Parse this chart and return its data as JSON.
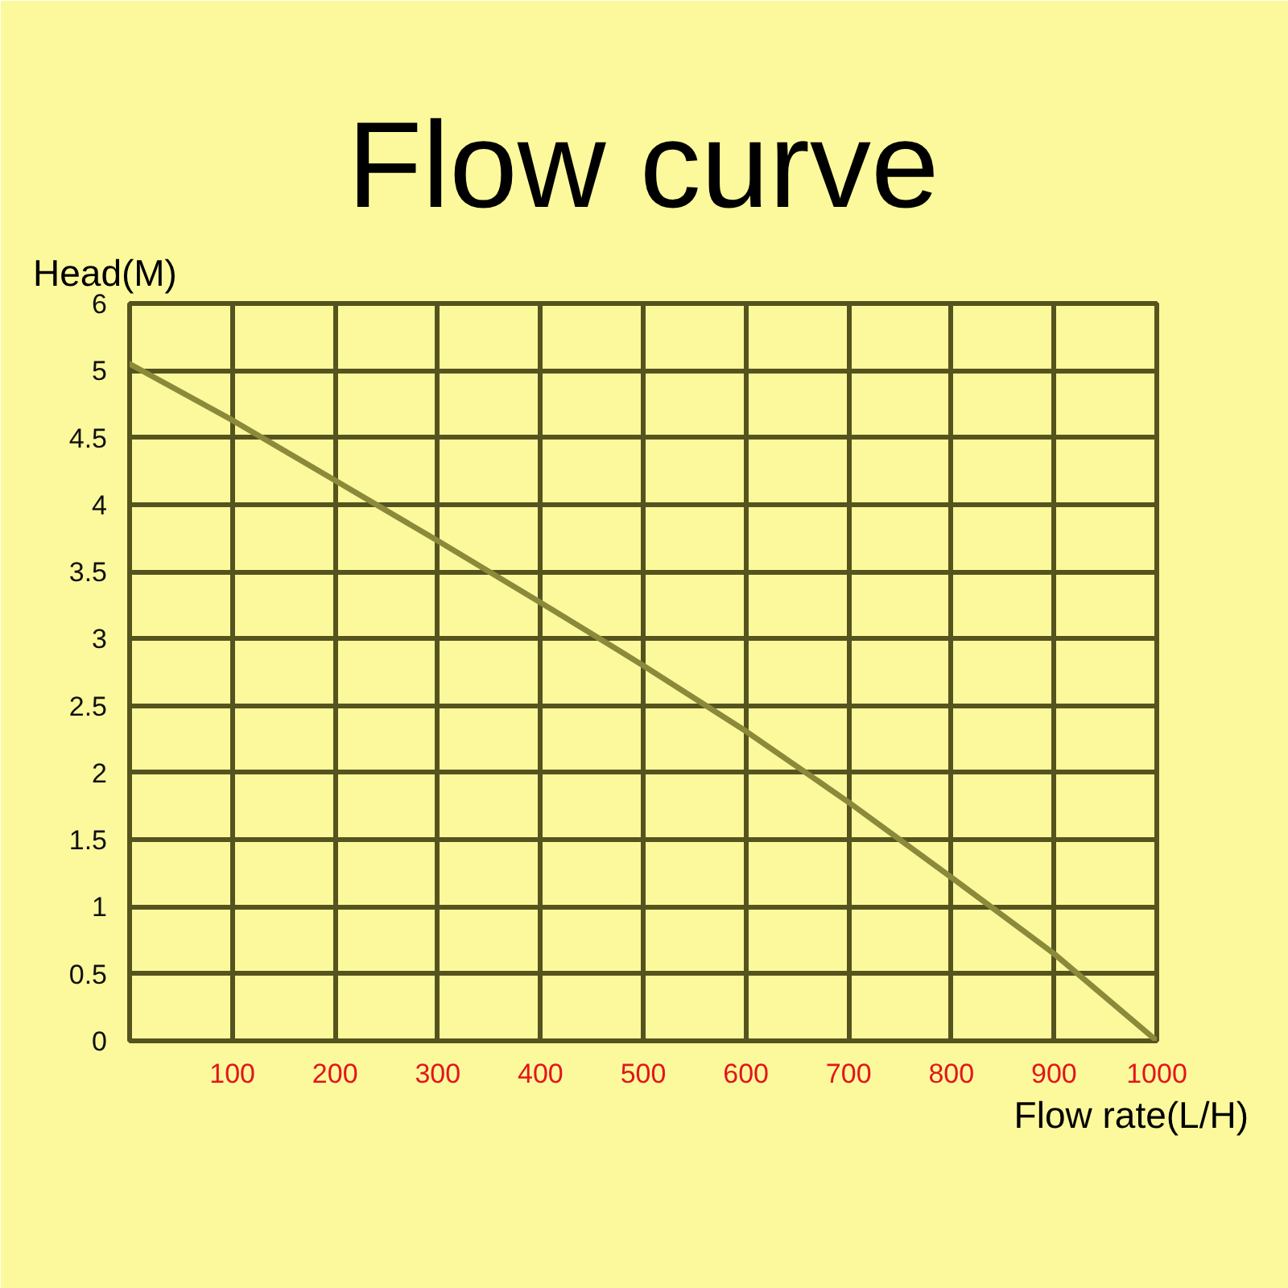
{
  "chart_data": {
    "type": "line",
    "title": "Flow curve",
    "xlabel": "Flow rate(L/H)",
    "ylabel": "Head(M)",
    "x": [
      0,
      100,
      200,
      300,
      400,
      500,
      600,
      700,
      800,
      900,
      1000
    ],
    "series": [
      {
        "color": "#8a8a3a",
        "values": [
          5.05,
          4.63,
          4.18,
          3.73,
          3.27,
          2.8,
          2.31,
          1.78,
          1.22,
          0.65,
          0
        ]
      }
    ],
    "xlim": [
      0,
      1000
    ],
    "ylim": [
      0,
      5.5
    ],
    "xticks": [
      100,
      200,
      300,
      400,
      500,
      600,
      700,
      800,
      900,
      1000
    ],
    "yticks": [
      0,
      0.5,
      1,
      1.5,
      2,
      2.5,
      3,
      3.5,
      4,
      4.5,
      5,
      {
        "value": 5.5,
        "label": "6"
      }
    ],
    "grid": true,
    "line_style": "solid"
  }
}
